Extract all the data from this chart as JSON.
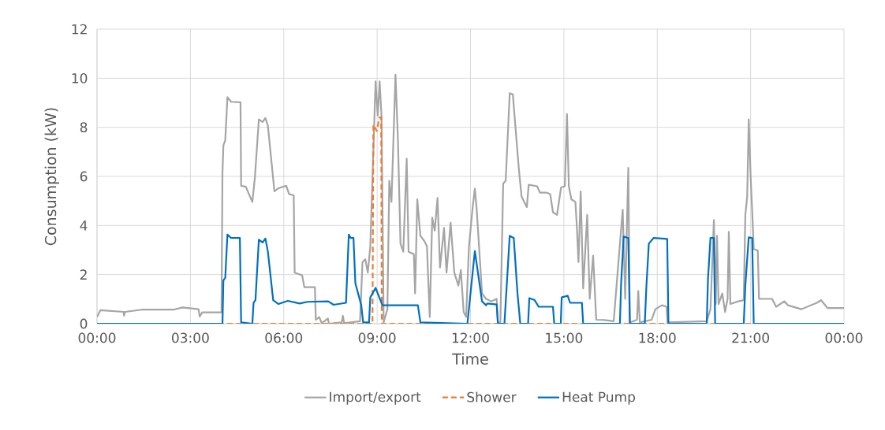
{
  "chart_data": {
    "type": "line",
    "xlabel": "Time",
    "ylabel": "Consumption (kW)",
    "xlim": [
      0,
      24
    ],
    "ylim": [
      0,
      12
    ],
    "xticks": [
      {
        "value": 0,
        "label": "00:00"
      },
      {
        "value": 3,
        "label": "03:00"
      },
      {
        "value": 6,
        "label": "06:00"
      },
      {
        "value": 9,
        "label": "09:00"
      },
      {
        "value": 12,
        "label": "12:00"
      },
      {
        "value": 15,
        "label": "15:00"
      },
      {
        "value": 18,
        "label": "18:00"
      },
      {
        "value": 21,
        "label": "21:00"
      },
      {
        "value": 24,
        "label": "00:00"
      }
    ],
    "yticks": [
      0,
      2,
      4,
      6,
      8,
      10,
      12
    ],
    "grid": true,
    "legend": "bottom",
    "marker": "none",
    "series": [
      {
        "name": "Import/export",
        "color": "#a5a5a5",
        "line_style": "solid",
        "x": [
          0,
          0.11,
          0.85,
          0.87,
          0.9,
          1.44,
          2.46,
          2.75,
          3.26,
          3.3,
          3.38,
          4.0,
          4.03,
          4.06,
          4.12,
          4.19,
          4.31,
          4.61,
          4.63,
          4.78,
          4.99,
          5.07,
          5.2,
          5.32,
          5.41,
          5.49,
          5.7,
          5.83,
          6.08,
          6.17,
          6.32,
          6.35,
          6.59,
          6.66,
          7.0,
          7.03,
          7.14,
          7.22,
          7.42,
          7.45,
          7.86,
          7.9,
          7.94,
          8.45,
          8.53,
          8.62,
          8.7,
          8.78,
          8.87,
          8.95,
          9.02,
          9.08,
          9.14,
          9.21,
          9.33,
          9.39,
          9.46,
          9.59,
          9.67,
          9.75,
          9.84,
          9.95,
          10.01,
          10.18,
          10.22,
          10.29,
          10.39,
          10.52,
          10.6,
          10.69,
          10.77,
          10.85,
          10.94,
          11.02,
          11.15,
          11.23,
          11.36,
          11.48,
          11.61,
          11.69,
          11.78,
          11.86,
          11.95,
          12.07,
          12.14,
          12.2,
          12.37,
          12.5,
          12.67,
          12.84,
          12.88,
          12.96,
          13.05,
          13.13,
          13.26,
          13.36,
          13.55,
          13.64,
          13.81,
          13.87,
          14.14,
          14.23,
          14.44,
          14.56,
          14.65,
          14.78,
          14.91,
          15.03,
          15.1,
          15.16,
          15.24,
          15.37,
          15.41,
          15.47,
          15.54,
          15.62,
          15.75,
          15.83,
          15.94,
          16.04,
          16.3,
          16.6,
          16.89,
          16.97,
          17.07,
          17.12,
          17.35,
          17.39,
          17.44,
          17.82,
          17.94,
          18.15,
          18.3,
          18.33,
          19.59,
          19.71,
          19.82,
          19.88,
          19.92,
          19.97,
          20.09,
          20.18,
          20.26,
          20.3,
          20.35,
          20.6,
          20.78,
          20.83,
          20.89,
          20.94,
          21.0,
          21.06,
          21.1,
          21.23,
          21.27,
          21.69,
          21.82,
          22.08,
          22.2,
          22.63,
          23.13,
          23.26,
          23.47,
          23.98,
          24
        ],
        "values": [
          0.27,
          0.55,
          0.48,
          0.33,
          0.48,
          0.57,
          0.57,
          0.66,
          0.59,
          0.29,
          0.46,
          0.46,
          6.14,
          7.26,
          7.47,
          9.23,
          9.04,
          9.02,
          5.62,
          5.58,
          4.96,
          5.92,
          8.32,
          8.22,
          8.38,
          8.06,
          5.39,
          5.52,
          5.62,
          5.28,
          5.23,
          2.08,
          1.97,
          1.49,
          1.49,
          0.16,
          0.27,
          0.02,
          0.21,
          0,
          0.05,
          0.32,
          0.02,
          0.1,
          2.51,
          2.62,
          2.08,
          3.15,
          null,
          9.87,
          8.48,
          9.87,
          8.48,
          0.05,
          0.59,
          5.82,
          4.96,
          10.14,
          7.42,
          3.26,
          2.93,
          6.72,
          2.93,
          2.83,
          1.23,
          5.07,
          3.58,
          3.36,
          3.15,
          0.27,
          4.32,
          3.79,
          5.12,
          2.29,
          3.9,
          2.08,
          4.11,
          2.08,
          1.55,
          2.19,
          0.48,
          0.27,
          3.15,
          4.75,
          5.5,
          4.64,
          1.23,
          1.01,
          0.91,
          1.01,
          0.05,
          0.05,
          5.71,
          5.82,
          9.39,
          9.34,
          6.35,
          5.18,
          4.75,
          5.66,
          5.6,
          5.34,
          5.34,
          5.28,
          4.54,
          4.43,
          5.55,
          5.6,
          8.54,
          5.6,
          5.07,
          4.96,
          4.11,
          2.51,
          5.39,
          1.44,
          4.43,
          1.01,
          2.77,
          0.16,
          0.15,
          0.1,
          4.64,
          1.01,
          6.35,
          0.05,
          0.16,
          1.33,
          0.05,
          0.16,
          0.59,
          0.75,
          0.69,
          0.05,
          0.1,
          0.59,
          4.22,
          0.8,
          3.58,
          0.8,
          1.23,
          0.48,
          1.01,
          3.74,
          0.8,
          0.91,
          0.96,
          4.43,
          5.18,
          8.32,
          6.03,
          4.32,
          3.04,
          2.98,
          1.01,
          1.01,
          0.69,
          0.91,
          0.75,
          0.59,
          0.85,
          0.96,
          0.64,
          0.64,
          0.64
        ]
      },
      {
        "name": "Shower",
        "color": "#ed7d31",
        "line_style": "dashed",
        "x": [
          0,
          8.85,
          8.88,
          8.99,
          9.07,
          9.13,
          9.15,
          24
        ],
        "values": [
          0,
          0,
          8.1,
          7.85,
          8.4,
          8.4,
          0,
          0
        ]
      },
      {
        "name": "Heat Pump",
        "color": "#0070c0",
        "line_style": "solid",
        "x": [
          0,
          4.03,
          4.06,
          4.12,
          4.19,
          4.31,
          4.59,
          4.63,
          4.99,
          5.03,
          5.09,
          5.2,
          5.32,
          5.41,
          5.49,
          5.66,
          5.83,
          6.13,
          6.51,
          6.76,
          7.43,
          7.6,
          8.0,
          8.09,
          8.15,
          8.24,
          8.3,
          8.49,
          8.55,
          8.74,
          8.78,
          8.95,
          9.17,
          10.31,
          10.39,
          11.9,
          12.14,
          12.37,
          12.5,
          12.54,
          12.84,
          12.88,
          13.09,
          13.26,
          13.39,
          13.51,
          13.6,
          13.85,
          13.89,
          14.06,
          14.19,
          14.65,
          14.69,
          14.9,
          14.93,
          15.12,
          15.2,
          15.58,
          15.62,
          16.8,
          16.84,
          16.92,
          17.07,
          17.12,
          17.6,
          17.65,
          17.73,
          17.88,
          18.32,
          18.36,
          19.59,
          19.63,
          19.71,
          19.82,
          19.86,
          20.78,
          20.83,
          20.94,
          21.05,
          21.1,
          24
        ],
        "values": [
          0,
          0,
          1.76,
          1.87,
          3.63,
          3.49,
          3.49,
          0.05,
          0,
          0.85,
          0.96,
          3.42,
          3.31,
          3.47,
          2.93,
          0.96,
          0.8,
          0.93,
          0.82,
          0.89,
          0.91,
          0.77,
          0.85,
          3.63,
          3.49,
          3.49,
          1.65,
          0.75,
          0.05,
          0.05,
          1.07,
          1.46,
          0.75,
          0.75,
          0.05,
          0,
          2.96,
          0.91,
          0.75,
          0.82,
          0.78,
          0,
          0,
          3.58,
          3.49,
          1.23,
          0,
          0,
          1.04,
          0.96,
          0.69,
          0.69,
          0,
          0,
          1.07,
          1.14,
          0.85,
          0.85,
          0,
          0,
          1.65,
          3.55,
          3.49,
          0,
          0,
          1.49,
          3.26,
          3.49,
          3.45,
          0,
          0,
          1.81,
          3.49,
          3.49,
          0,
          0,
          1.55,
          3.52,
          3.49,
          0,
          0
        ]
      }
    ]
  }
}
